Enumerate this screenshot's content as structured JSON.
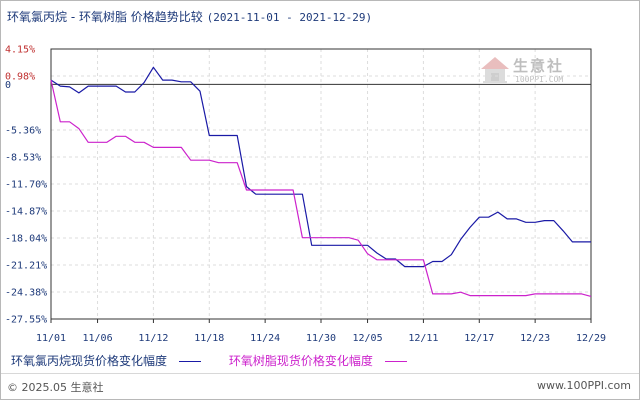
{
  "title": "环氧氯丙烷 - 环氧树脂 价格趋势比较",
  "date_range": "(2021-11-01 - 2021-12-29)",
  "watermark": {
    "name": "生意社",
    "url": "100PPI.COM"
  },
  "footer": {
    "copyright": "© 2025.05 生意社",
    "site": "www.100PPI.com"
  },
  "colors": {
    "positive": "#c03030",
    "negative": "#1e3a7a",
    "grid": "#dddddd",
    "axis": "#333333"
  },
  "chart_data": {
    "type": "line",
    "title": "环氧氯丙烷 - 环氧树脂 价格趋势比较",
    "subtitle": "(2021-11-01 - 2021-12-29)",
    "xlabel": "",
    "ylabel": "",
    "x_range": [
      0,
      58
    ],
    "ylim": [
      -27.55,
      4.15
    ],
    "y_ticks": [
      {
        "value": 4.15,
        "label": "4.15%"
      },
      {
        "value": 0.98,
        "label": "0.98%"
      },
      {
        "value": 0,
        "label": "0"
      },
      {
        "value": -5.36,
        "label": "-5.36%"
      },
      {
        "value": -8.53,
        "label": "-8.53%"
      },
      {
        "value": -11.7,
        "label": "-11.70%"
      },
      {
        "value": -14.87,
        "label": "-14.87%"
      },
      {
        "value": -18.04,
        "label": "-18.04%"
      },
      {
        "value": -21.21,
        "label": "-21.21%"
      },
      {
        "value": -24.38,
        "label": "-24.38%"
      },
      {
        "value": -27.55,
        "label": "-27.55%"
      }
    ],
    "x_ticks": [
      {
        "value": 0,
        "label": "11/01"
      },
      {
        "value": 5,
        "label": "11/06"
      },
      {
        "value": 11,
        "label": "11/12"
      },
      {
        "value": 17,
        "label": "11/18"
      },
      {
        "value": 23,
        "label": "11/24"
      },
      {
        "value": 29,
        "label": "11/30"
      },
      {
        "value": 34,
        "label": "12/05"
      },
      {
        "value": 40,
        "label": "12/11"
      },
      {
        "value": 46,
        "label": "12/17"
      },
      {
        "value": 52,
        "label": "12/23"
      },
      {
        "value": 58,
        "label": "12/29"
      }
    ],
    "grid": true,
    "legend_position": "bottom",
    "series": [
      {
        "name": "环氧氯丙烷现货价格变化幅度",
        "color": "#1a1aa6",
        "points": [
          [
            0,
            0.5
          ],
          [
            1,
            -0.2
          ],
          [
            2,
            -0.3
          ],
          [
            3,
            -1.0
          ],
          [
            4,
            -0.2
          ],
          [
            5,
            -0.2
          ],
          [
            6,
            -0.2
          ],
          [
            7,
            -0.2
          ],
          [
            8,
            -0.9
          ],
          [
            9,
            -0.9
          ],
          [
            10,
            0.2
          ],
          [
            11,
            2.0
          ],
          [
            12,
            0.5
          ],
          [
            13,
            0.5
          ],
          [
            14,
            0.3
          ],
          [
            15,
            0.3
          ],
          [
            16,
            -0.8
          ],
          [
            17,
            -6.0
          ],
          [
            18,
            -6.0
          ],
          [
            19,
            -6.0
          ],
          [
            20,
            -6.0
          ],
          [
            21,
            -12.0
          ],
          [
            22,
            -12.9
          ],
          [
            23,
            -12.9
          ],
          [
            24,
            -12.9
          ],
          [
            25,
            -12.9
          ],
          [
            26,
            -12.9
          ],
          [
            27,
            -12.9
          ],
          [
            28,
            -18.9
          ],
          [
            29,
            -18.9
          ],
          [
            30,
            -18.9
          ],
          [
            31,
            -18.9
          ],
          [
            32,
            -18.9
          ],
          [
            33,
            -18.9
          ],
          [
            34,
            -18.9
          ],
          [
            35,
            -19.8
          ],
          [
            36,
            -20.5
          ],
          [
            37,
            -20.5
          ],
          [
            38,
            -21.4
          ],
          [
            39,
            -21.4
          ],
          [
            40,
            -21.4
          ],
          [
            41,
            -20.8
          ],
          [
            42,
            -20.8
          ],
          [
            43,
            -20.0
          ],
          [
            44,
            -18.2
          ],
          [
            45,
            -16.8
          ],
          [
            46,
            -15.6
          ],
          [
            47,
            -15.6
          ],
          [
            48,
            -15.0
          ],
          [
            49,
            -15.8
          ],
          [
            50,
            -15.8
          ],
          [
            51,
            -16.2
          ],
          [
            52,
            -16.2
          ],
          [
            53,
            -16.0
          ],
          [
            54,
            -16.0
          ],
          [
            55,
            -17.2
          ],
          [
            56,
            -18.5
          ],
          [
            57,
            -18.5
          ],
          [
            58,
            -18.5
          ]
        ]
      },
      {
        "name": "环氧树脂现货价格变化幅度",
        "color": "#cc22cc",
        "points": [
          [
            0,
            0.5
          ],
          [
            1,
            -4.4
          ],
          [
            2,
            -4.4
          ],
          [
            3,
            -5.2
          ],
          [
            4,
            -6.8
          ],
          [
            5,
            -6.8
          ],
          [
            6,
            -6.8
          ],
          [
            7,
            -6.1
          ],
          [
            8,
            -6.1
          ],
          [
            9,
            -6.8
          ],
          [
            10,
            -6.8
          ],
          [
            11,
            -7.4
          ],
          [
            12,
            -7.4
          ],
          [
            13,
            -7.4
          ],
          [
            14,
            -7.4
          ],
          [
            15,
            -8.9
          ],
          [
            16,
            -8.9
          ],
          [
            17,
            -8.9
          ],
          [
            18,
            -9.2
          ],
          [
            19,
            -9.2
          ],
          [
            20,
            -9.2
          ],
          [
            21,
            -12.4
          ],
          [
            22,
            -12.4
          ],
          [
            23,
            -12.4
          ],
          [
            24,
            -12.4
          ],
          [
            25,
            -12.4
          ],
          [
            26,
            -12.4
          ],
          [
            27,
            -18.0
          ],
          [
            28,
            -18.0
          ],
          [
            29,
            -18.0
          ],
          [
            30,
            -18.0
          ],
          [
            31,
            -18.0
          ],
          [
            32,
            -18.0
          ],
          [
            33,
            -18.3
          ],
          [
            34,
            -19.9
          ],
          [
            35,
            -20.6
          ],
          [
            36,
            -20.6
          ],
          [
            37,
            -20.6
          ],
          [
            38,
            -20.6
          ],
          [
            39,
            -20.6
          ],
          [
            40,
            -20.6
          ],
          [
            41,
            -24.6
          ],
          [
            42,
            -24.6
          ],
          [
            43,
            -24.6
          ],
          [
            44,
            -24.4
          ],
          [
            45,
            -24.8
          ],
          [
            46,
            -24.8
          ],
          [
            47,
            -24.8
          ],
          [
            48,
            -24.8
          ],
          [
            49,
            -24.8
          ],
          [
            50,
            -24.8
          ],
          [
            51,
            -24.8
          ],
          [
            52,
            -24.6
          ],
          [
            53,
            -24.6
          ],
          [
            54,
            -24.6
          ],
          [
            55,
            -24.6
          ],
          [
            56,
            -24.6
          ],
          [
            57,
            -24.6
          ],
          [
            58,
            -24.9
          ]
        ]
      }
    ]
  }
}
